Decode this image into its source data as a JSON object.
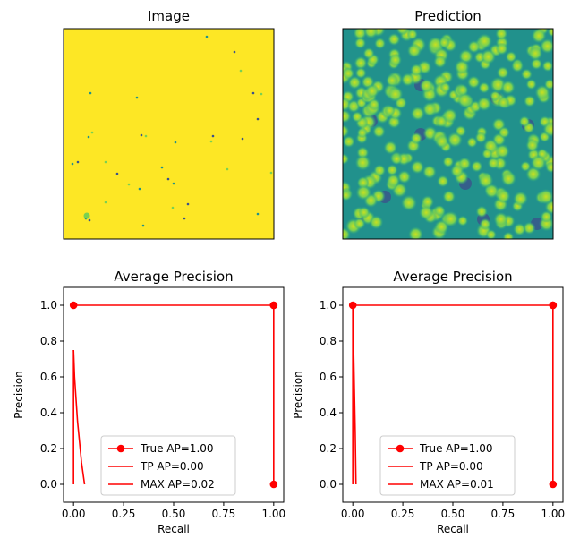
{
  "panels": {
    "image": {
      "title": "Image"
    },
    "prediction": {
      "title": "Prediction"
    }
  },
  "colors": {
    "viridis_yellow": "#fde725",
    "viridis_green": "#5ec962",
    "viridis_teal": "#21918c",
    "viridis_blue": "#3b528b",
    "viridis_purple": "#440154",
    "curve_red": "#ff0000"
  },
  "chart_data": [
    {
      "type": "line",
      "title": "Average Precision",
      "xlabel": "Recall",
      "ylabel": "Precision",
      "xlim": [
        -0.05,
        1.05
      ],
      "ylim": [
        -0.1,
        1.1
      ],
      "xticks": [
        "0.00",
        "0.25",
        "0.50",
        "0.75",
        "1.00"
      ],
      "yticks": [
        "0.0",
        "0.2",
        "0.4",
        "0.6",
        "0.8",
        "1.0"
      ],
      "grid": false,
      "legend": "lower center",
      "series": [
        {
          "name": "True AP=1.00",
          "marker": "o",
          "x": [
            0,
            1,
            1,
            1
          ],
          "y": [
            1,
            1,
            1,
            0
          ]
        },
        {
          "name": "TP AP=0.00",
          "marker": "none",
          "x": [
            0,
            0
          ],
          "y": [
            0.75,
            0
          ]
        },
        {
          "name": "MAX AP=0.02",
          "marker": "none",
          "x": [
            0,
            0.005,
            0.02,
            0.04,
            0.055
          ],
          "y": [
            0.75,
            0.6,
            0.35,
            0.12,
            0
          ]
        }
      ]
    },
    {
      "type": "line",
      "title": "Average Precision",
      "xlabel": "Recall",
      "ylabel": "Precision",
      "xlim": [
        -0.05,
        1.05
      ],
      "ylim": [
        -0.1,
        1.1
      ],
      "xticks": [
        "0.00",
        "0.25",
        "0.50",
        "0.75",
        "1.00"
      ],
      "yticks": [
        "0.0",
        "0.2",
        "0.4",
        "0.6",
        "0.8",
        "1.0"
      ],
      "grid": false,
      "legend": "lower center",
      "series": [
        {
          "name": "True AP=1.00",
          "marker": "o",
          "x": [
            0,
            1,
            1,
            1
          ],
          "y": [
            1,
            1,
            1,
            0
          ]
        },
        {
          "name": "TP AP=0.00",
          "marker": "none",
          "x": [
            0,
            0
          ],
          "y": [
            1,
            0
          ]
        },
        {
          "name": "MAX AP=0.01",
          "marker": "none",
          "x": [
            0,
            0.005,
            0.012,
            0.016
          ],
          "y": [
            1,
            0.7,
            0.3,
            0
          ]
        }
      ]
    }
  ]
}
